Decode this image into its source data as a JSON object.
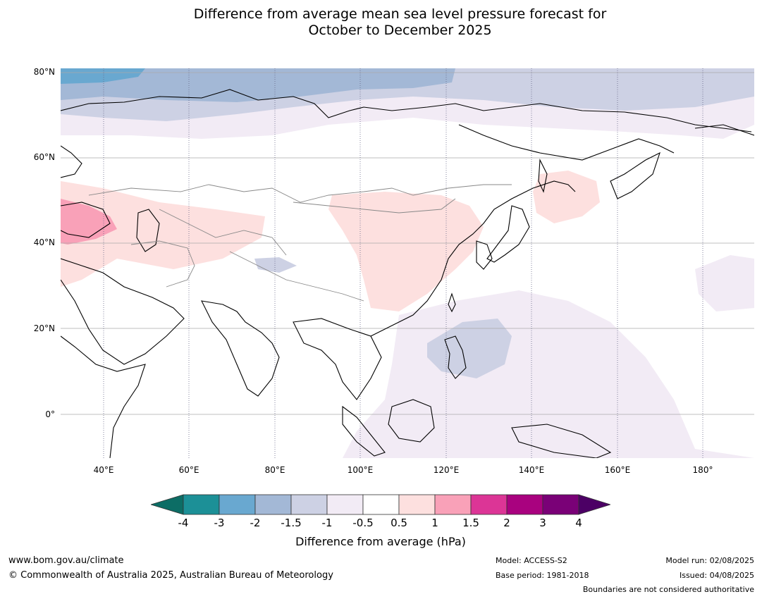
{
  "title": {
    "line1": "Difference from average mean sea level pressure forecast for",
    "line2": "October to December 2025"
  },
  "map": {
    "lat_labels": [
      "80°N",
      "60°N",
      "40°N",
      "20°N",
      "0°"
    ],
    "lon_labels": [
      "40°E",
      "60°E",
      "80°E",
      "100°E",
      "120°E",
      "140°E",
      "160°E",
      "180°"
    ],
    "lat_range": [
      -10,
      81
    ],
    "lon_range": [
      30,
      192
    ],
    "gridlines": true,
    "anomaly_regions": [
      {
        "area": "Arctic Ocean north of Scandinavia",
        "category": "-3 to -2",
        "color": "#69a8d0"
      },
      {
        "area": "Arctic coast of Russia",
        "category": "-2 to -1.5",
        "color": "#a3b8d6"
      },
      {
        "area": "Northern Siberia",
        "category": "-1.5 to -1",
        "color": "#cdd1e4"
      },
      {
        "area": "Eastern Siberia and Pacific",
        "category": "-1 to -0.5",
        "color": "#f2ebf5"
      },
      {
        "area": "Western and Central Asia",
        "category": "0.5 to 1",
        "color": "#fde0df"
      },
      {
        "area": "Turkey and Black Sea",
        "category": "1 to 1.5",
        "color": "#f9a1b8"
      },
      {
        "area": "China",
        "category": "0.5 to 1",
        "color": "#fde0df"
      },
      {
        "area": "Sea of Okhotsk",
        "category": "0.5 to 1",
        "color": "#fde0df"
      },
      {
        "area": "Philippine Sea",
        "category": "-1.5 to -1",
        "color": "#cdd1e4"
      }
    ]
  },
  "colorbar": {
    "ticks": [
      "-4",
      "-3",
      "-2",
      "-1.5",
      "-1",
      "-0.5",
      "0.5",
      "1",
      "1.5",
      "2",
      "3",
      "4"
    ],
    "colors": [
      "#0c6d65",
      "#1c9097",
      "#69a8d0",
      "#a3b8d6",
      "#cdd1e4",
      "#f2ebf5",
      "#ffffff",
      "#fde0df",
      "#f9a1b8",
      "#dc3596",
      "#a9027f",
      "#7a0177",
      "#4c0065"
    ],
    "label": "Difference from average (hPa)"
  },
  "footer": {
    "url": "www.bom.gov.au/climate",
    "copyright": "© Commonwealth of Australia 2025, Australian Bureau of Meteorology",
    "model": "Model: ACCESS-S2",
    "base_period": "Base period: 1981-2018",
    "model_run": "Model run: 02/08/2025",
    "issued": "Issued: 04/08/2025",
    "disclaimer": "Boundaries are not considered authoritative"
  }
}
